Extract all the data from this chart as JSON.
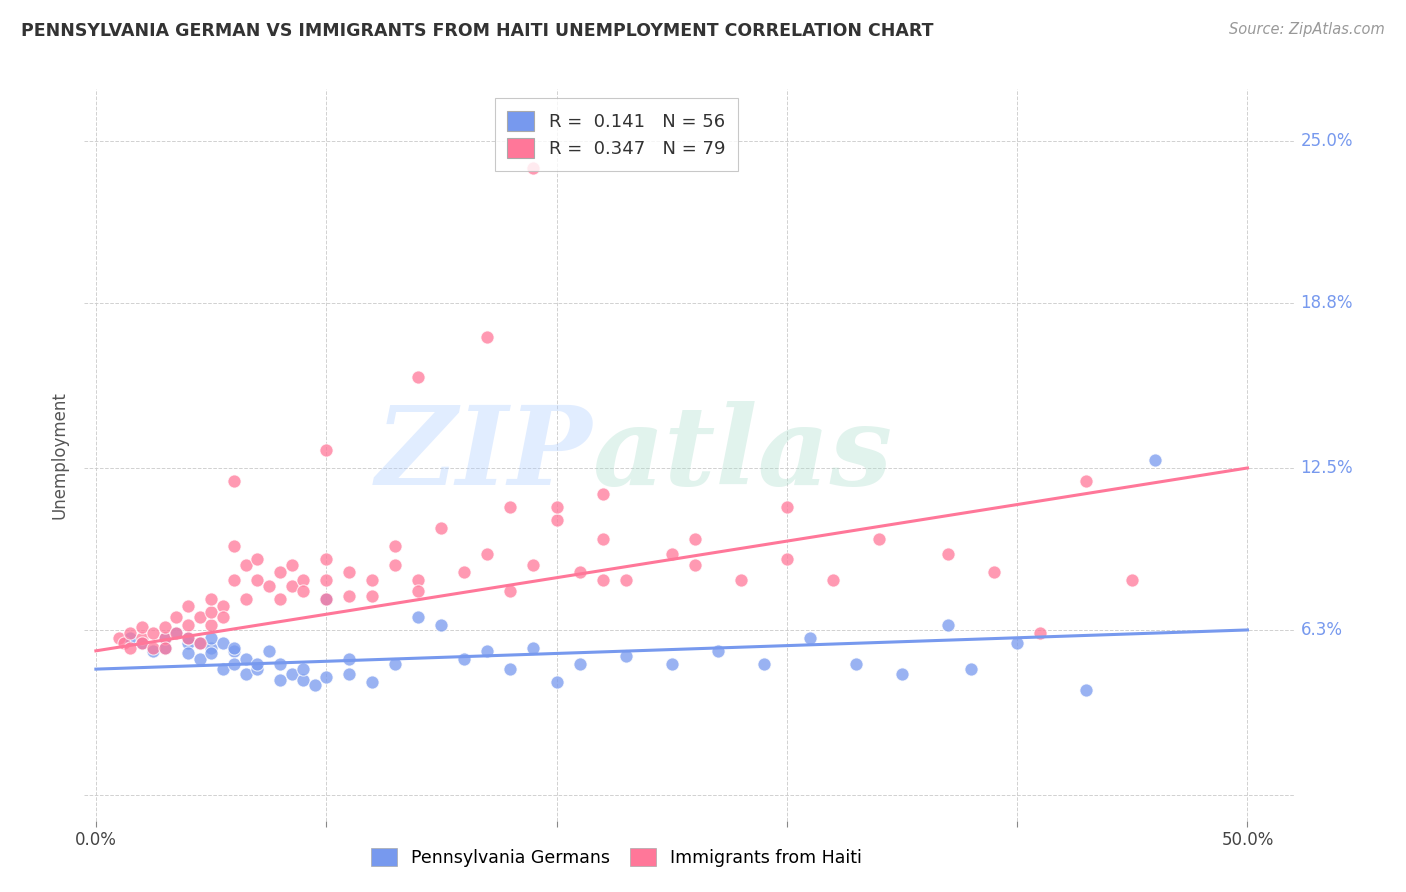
{
  "title": "PENNSYLVANIA GERMAN VS IMMIGRANTS FROM HAITI UNEMPLOYMENT CORRELATION CHART",
  "source": "Source: ZipAtlas.com",
  "ylabel": "Unemployment",
  "y_ticks": [
    0.0,
    0.063,
    0.125,
    0.188,
    0.25
  ],
  "y_tick_labels": [
    "",
    "6.3%",
    "12.5%",
    "18.8%",
    "25.0%"
  ],
  "x_ticks": [
    0.0,
    0.1,
    0.2,
    0.3,
    0.4,
    0.5
  ],
  "x_tick_labels": [
    "0.0%",
    "",
    "",
    "",
    "",
    "50.0%"
  ],
  "xlim": [
    -0.005,
    0.52
  ],
  "ylim": [
    -0.01,
    0.27
  ],
  "legend_label1": "R =  0.141   N = 56",
  "legend_label2": "R =  0.347   N = 79",
  "color_blue": "#7799EE",
  "color_pink": "#FF7799",
  "watermark_zip": "ZIP",
  "watermark_atlas": "atlas",
  "blue_line_x0": 0.0,
  "blue_line_x1": 0.5,
  "blue_line_y0": 0.048,
  "blue_line_y1": 0.063,
  "pink_line_x0": 0.0,
  "pink_line_x1": 0.5,
  "pink_line_y0": 0.055,
  "pink_line_y1": 0.125,
  "blue_scatter_x": [
    0.015,
    0.02,
    0.025,
    0.03,
    0.03,
    0.035,
    0.04,
    0.04,
    0.04,
    0.045,
    0.045,
    0.05,
    0.05,
    0.05,
    0.055,
    0.055,
    0.06,
    0.06,
    0.06,
    0.065,
    0.065,
    0.07,
    0.07,
    0.075,
    0.08,
    0.08,
    0.085,
    0.09,
    0.09,
    0.095,
    0.1,
    0.1,
    0.11,
    0.11,
    0.12,
    0.13,
    0.14,
    0.15,
    0.16,
    0.17,
    0.18,
    0.19,
    0.2,
    0.21,
    0.23,
    0.25,
    0.27,
    0.29,
    0.31,
    0.33,
    0.35,
    0.37,
    0.38,
    0.4,
    0.43,
    0.46
  ],
  "blue_scatter_y": [
    0.06,
    0.058,
    0.055,
    0.06,
    0.056,
    0.062,
    0.058,
    0.054,
    0.06,
    0.052,
    0.058,
    0.056,
    0.06,
    0.054,
    0.058,
    0.048,
    0.055,
    0.05,
    0.056,
    0.046,
    0.052,
    0.048,
    0.05,
    0.055,
    0.044,
    0.05,
    0.046,
    0.044,
    0.048,
    0.042,
    0.045,
    0.075,
    0.046,
    0.052,
    0.043,
    0.05,
    0.068,
    0.065,
    0.052,
    0.055,
    0.048,
    0.056,
    0.043,
    0.05,
    0.053,
    0.05,
    0.055,
    0.05,
    0.06,
    0.05,
    0.046,
    0.065,
    0.048,
    0.058,
    0.04,
    0.128
  ],
  "pink_scatter_x": [
    0.01,
    0.012,
    0.015,
    0.015,
    0.02,
    0.02,
    0.02,
    0.025,
    0.025,
    0.03,
    0.03,
    0.03,
    0.035,
    0.035,
    0.04,
    0.04,
    0.04,
    0.045,
    0.045,
    0.05,
    0.05,
    0.05,
    0.055,
    0.055,
    0.06,
    0.06,
    0.065,
    0.065,
    0.07,
    0.07,
    0.075,
    0.08,
    0.08,
    0.085,
    0.085,
    0.09,
    0.09,
    0.1,
    0.1,
    0.1,
    0.11,
    0.11,
    0.12,
    0.12,
    0.13,
    0.13,
    0.14,
    0.14,
    0.15,
    0.16,
    0.17,
    0.18,
    0.19,
    0.2,
    0.21,
    0.22,
    0.23,
    0.25,
    0.26,
    0.28,
    0.3,
    0.32,
    0.34,
    0.37,
    0.39,
    0.41,
    0.43,
    0.45,
    0.3,
    0.26,
    0.22,
    0.18,
    0.14,
    0.1,
    0.06,
    0.22,
    0.2,
    0.19,
    0.17
  ],
  "pink_scatter_y": [
    0.06,
    0.058,
    0.062,
    0.056,
    0.06,
    0.058,
    0.064,
    0.056,
    0.062,
    0.06,
    0.064,
    0.056,
    0.068,
    0.062,
    0.065,
    0.06,
    0.072,
    0.068,
    0.058,
    0.065,
    0.07,
    0.075,
    0.072,
    0.068,
    0.095,
    0.082,
    0.088,
    0.075,
    0.082,
    0.09,
    0.08,
    0.075,
    0.085,
    0.08,
    0.088,
    0.082,
    0.078,
    0.075,
    0.082,
    0.09,
    0.076,
    0.085,
    0.076,
    0.082,
    0.088,
    0.095,
    0.082,
    0.078,
    0.102,
    0.085,
    0.092,
    0.11,
    0.088,
    0.105,
    0.085,
    0.098,
    0.082,
    0.092,
    0.088,
    0.082,
    0.09,
    0.082,
    0.098,
    0.092,
    0.085,
    0.062,
    0.12,
    0.082,
    0.11,
    0.098,
    0.082,
    0.078,
    0.16,
    0.132,
    0.12,
    0.115,
    0.11,
    0.24,
    0.175
  ]
}
